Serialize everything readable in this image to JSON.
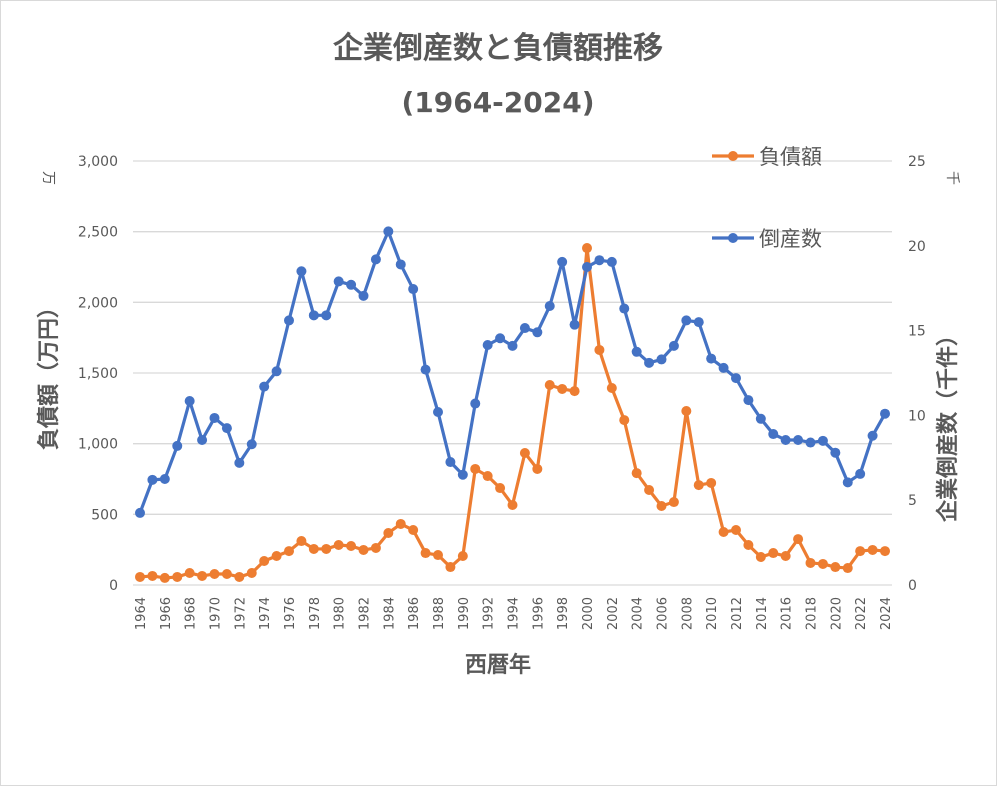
{
  "chart_data": {
    "type": "line",
    "title": "企業倒産数と負債額推移",
    "subtitle": "(1964-2024)",
    "xlabel": "西暦年",
    "ylabel_left": "負債額（万円）",
    "ylabel_right": "企業倒産数（千件）",
    "unit_left": "万",
    "unit_right": "千",
    "ylim_left": [
      0,
      3000
    ],
    "ylim_right": [
      0,
      25
    ],
    "yticks_left": [
      "0",
      "500",
      "1,000",
      "1,500",
      "2,000",
      "2,500",
      "3,000"
    ],
    "yticks_right": [
      "0",
      "5",
      "10",
      "15",
      "20",
      "25"
    ],
    "grid": true,
    "legend_position": "top-right",
    "x": [
      1964,
      1965,
      1966,
      1967,
      1968,
      1969,
      1970,
      1971,
      1972,
      1973,
      1974,
      1975,
      1976,
      1977,
      1978,
      1979,
      1980,
      1981,
      1982,
      1983,
      1984,
      1985,
      1986,
      1987,
      1988,
      1989,
      1990,
      1991,
      1992,
      1993,
      1994,
      1995,
      1996,
      1997,
      1998,
      1999,
      2000,
      2001,
      2002,
      2003,
      2004,
      2005,
      2006,
      2007,
      2008,
      2009,
      2010,
      2011,
      2012,
      2013,
      2014,
      2015,
      2016,
      2017,
      2018,
      2019,
      2020,
      2021,
      2022,
      2023,
      2024
    ],
    "series": [
      {
        "name": "負債額",
        "axis": "left",
        "color": "#ED7D31",
        "values": [
          57,
          64,
          50,
          57,
          85,
          64,
          78,
          78,
          57,
          85,
          170,
          205,
          240,
          311,
          255,
          255,
          283,
          276,
          248,
          262,
          368,
          432,
          389,
          226,
          212,
          127,
          205,
          821,
          771,
          686,
          566,
          934,
          821,
          1415,
          1387,
          1372,
          2384,
          1663,
          1394,
          1167,
          792,
          672,
          559,
          587,
          1231,
          707,
          722,
          375,
          389,
          283,
          198,
          226,
          205,
          325,
          156,
          149,
          127,
          120,
          240,
          248,
          240
        ]
      },
      {
        "name": "倒産数",
        "axis": "right",
        "color": "#4472C4",
        "values": [
          4.25,
          6.2,
          6.25,
          8.2,
          10.85,
          8.55,
          9.85,
          9.25,
          7.2,
          8.3,
          11.7,
          12.6,
          15.6,
          18.5,
          15.9,
          15.9,
          17.9,
          17.7,
          17.05,
          19.2,
          20.85,
          18.9,
          17.45,
          12.7,
          10.2,
          7.25,
          6.5,
          10.7,
          14.15,
          14.55,
          14.1,
          15.15,
          14.9,
          16.45,
          19.05,
          15.35,
          18.75,
          19.15,
          19.05,
          16.3,
          13.75,
          13.1,
          13.3,
          14.1,
          15.6,
          15.5,
          13.35,
          12.8,
          12.2,
          10.9,
          9.8,
          8.9,
          8.55,
          8.55,
          8.4,
          8.5,
          7.8,
          6.05,
          6.55,
          8.8,
          10.1
        ]
      }
    ]
  }
}
